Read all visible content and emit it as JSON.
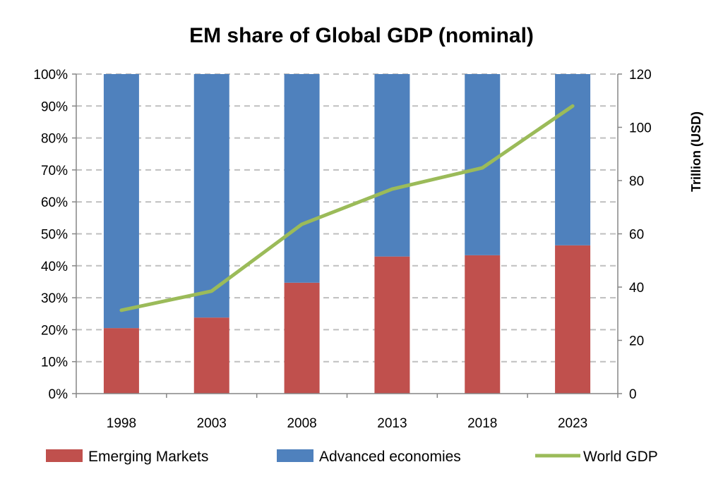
{
  "chart_data": {
    "type": "bar",
    "stacked": true,
    "title": "EM share of Global GDP (nominal)",
    "categories": [
      "1998",
      "2003",
      "2008",
      "2013",
      "2018",
      "2023"
    ],
    "series": [
      {
        "name": "Emerging Markets",
        "type": "bar",
        "axis": "left",
        "color": "#c0504d",
        "values": [
          20.5,
          23.8,
          34.7,
          42.9,
          43.3,
          46.4
        ]
      },
      {
        "name": "Advanced economies",
        "type": "bar",
        "axis": "left",
        "color": "#4f81bd",
        "values": [
          79.5,
          76.2,
          65.3,
          57.1,
          56.7,
          53.6
        ]
      },
      {
        "name": "World GDP",
        "type": "line",
        "axis": "right",
        "color": "#9bbb59",
        "values": [
          31.3,
          38.5,
          63.6,
          76.8,
          84.8,
          108.0
        ]
      }
    ],
    "y_left": {
      "ylim": [
        0,
        100
      ],
      "ticks": [
        "0%",
        "10%",
        "20%",
        "30%",
        "40%",
        "50%",
        "60%",
        "70%",
        "80%",
        "90%",
        "100%"
      ]
    },
    "y_right": {
      "ylim": [
        0,
        120
      ],
      "ticks": [
        "0",
        "20",
        "40",
        "60",
        "80",
        "100",
        "120"
      ],
      "label": "Trillion  (USD)"
    },
    "xlabel": "",
    "grid": "dashed horizontal",
    "legend_position": "bottom"
  }
}
